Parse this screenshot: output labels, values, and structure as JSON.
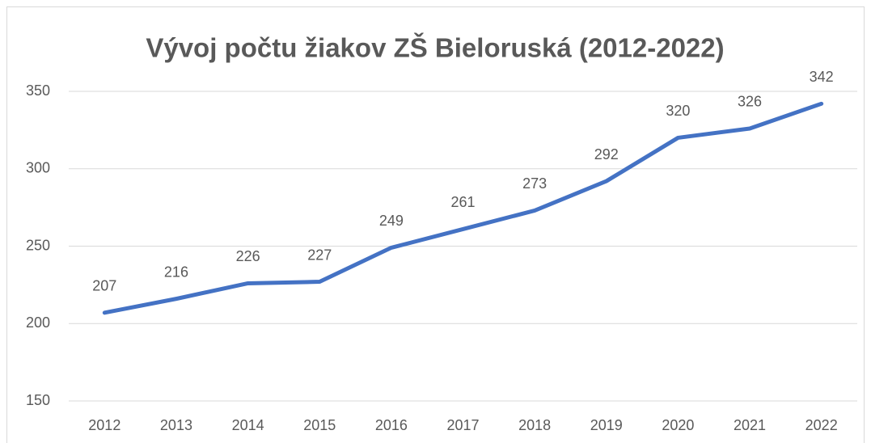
{
  "chart_data": {
    "type": "line",
    "title": "Vývoj počtu žiakov ZŠ Bieloruská (2012-2022)",
    "categories": [
      "2012",
      "2013",
      "2014",
      "2015",
      "2016",
      "2017",
      "2018",
      "2019",
      "2020",
      "2021",
      "2022"
    ],
    "values": [
      207,
      216,
      226,
      227,
      249,
      261,
      273,
      292,
      320,
      326,
      342
    ],
    "color": "#4472c4",
    "ylim": [
      150,
      350
    ],
    "yticks": [
      150,
      200,
      250,
      300,
      350
    ],
    "grid": true,
    "data_labels": true
  }
}
